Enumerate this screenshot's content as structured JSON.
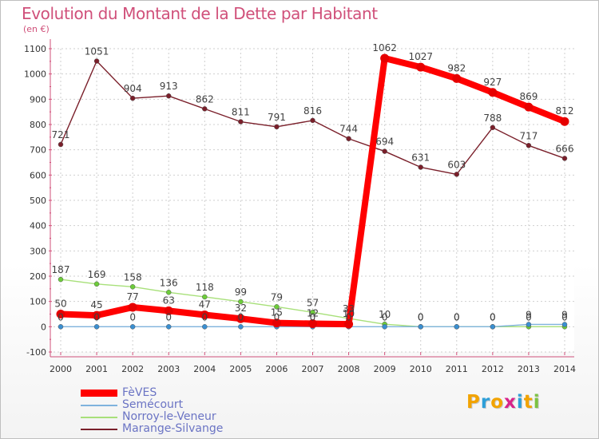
{
  "chart_data": {
    "type": "line",
    "title": "Evolution du Montant de la Dette par Habitant",
    "subtitle": "(en €)",
    "x": [
      "2000",
      "2001",
      "2002",
      "2003",
      "2004",
      "2005",
      "2006",
      "2007",
      "2008",
      "2009",
      "2010",
      "2011",
      "2012",
      "2013",
      "2014"
    ],
    "ylim": [
      -100,
      1100
    ],
    "yticks": [
      -100,
      0,
      100,
      200,
      300,
      400,
      500,
      600,
      700,
      800,
      900,
      1000,
      1100
    ],
    "grid": true,
    "legend_position": "bottom-left",
    "series": [
      {
        "name": "Marange-Silvange",
        "color": "#7a1f2a",
        "marker": "#7a1f2a",
        "values": [
          721,
          1051,
          904,
          913,
          862,
          811,
          791,
          816,
          744,
          694,
          631,
          603,
          788,
          717,
          666
        ]
      },
      {
        "name": "Norroy-le-Veneur",
        "color": "#a8e07a",
        "marker": "#6dcc3a",
        "values": [
          187,
          169,
          158,
          136,
          118,
          99,
          79,
          57,
          33,
          10,
          0,
          0,
          0,
          0,
          0
        ]
      },
      {
        "name": "Semécourt",
        "color": "#7fb3dd",
        "marker": "#3a8fd1",
        "values": [
          0,
          0,
          0,
          0,
          0,
          0,
          0,
          0,
          0,
          0,
          0,
          0,
          0,
          9,
          9
        ]
      },
      {
        "name": "FèVES",
        "color": "#ff0000",
        "marker": "#e60000",
        "values": [
          50,
          45,
          77,
          63,
          47,
          32,
          15,
          12,
          10,
          1062,
          1027,
          982,
          927,
          869,
          812
        ]
      }
    ],
    "data_labels": [
      {
        "series": 0,
        "labels": [
          "721",
          "1051",
          "904",
          "913",
          "862",
          "811",
          "791",
          "816",
          "744",
          "694",
          "631",
          "603",
          "788",
          "717",
          "666"
        ]
      },
      {
        "series": 1,
        "labels": [
          "187",
          "169",
          "158",
          "136",
          "118",
          "99",
          "79",
          "57",
          "33",
          "10",
          "0",
          "0",
          "0",
          "0",
          "0"
        ]
      },
      {
        "series": 2,
        "labels": [
          "0",
          "0",
          "0",
          "0",
          "0",
          "0",
          "0",
          "0",
          "0",
          "0",
          "0",
          "0",
          "0",
          "9",
          "9"
        ]
      },
      {
        "series": 3,
        "labels": [
          "50",
          "45",
          "77",
          "63",
          "47",
          "32",
          "15",
          "12",
          "10",
          "1062",
          "1027",
          "982",
          "927",
          "869",
          "812"
        ]
      }
    ]
  },
  "legend": {
    "items": [
      {
        "label": "FèVES",
        "color": "#ff0000"
      },
      {
        "label": "Semécourt",
        "color": "#7fb3dd"
      },
      {
        "label": "Norroy-le-Veneur",
        "color": "#a8e07a"
      },
      {
        "label": "Marange-Silvange",
        "color": "#7a1f2a"
      }
    ]
  },
  "logo": {
    "text": "Proxiti",
    "letters": [
      "P",
      "r",
      "o",
      "x",
      "i",
      "t",
      "i"
    ],
    "colors": [
      "#f2a300",
      "#2e9fd8",
      "#f2a300",
      "#d8238a",
      "#2e9fd8",
      "#f2a300",
      "#7cc242"
    ]
  }
}
